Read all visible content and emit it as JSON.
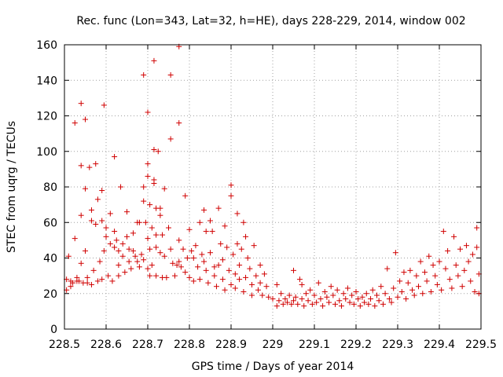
{
  "chart_data": {
    "type": "scatter",
    "title": "Rec. func (Lon=343, Lat=32, h=HE), days 228-229, 2014, window 002",
    "xlabel": "GPS time / Days of year 2014",
    "ylabel": "STEC from uqrg / TECUs",
    "xlim": [
      228.5,
      229.5
    ],
    "ylim": [
      0,
      160
    ],
    "xticks": [
      "228.5",
      "228.6",
      "228.7",
      "228.8",
      "228.9",
      "229",
      "229.1",
      "229.2",
      "229.3",
      "229.4",
      "229.5"
    ],
    "yticks": [
      "0",
      "20",
      "40",
      "60",
      "80",
      "100",
      "120",
      "140",
      "160"
    ],
    "grid": true,
    "marker": "+",
    "color": "#d00000",
    "points": [
      [
        228.505,
        28
      ],
      [
        228.505,
        22
      ],
      [
        228.51,
        41
      ],
      [
        228.515,
        27
      ],
      [
        228.515,
        24
      ],
      [
        228.52,
        26
      ],
      [
        228.525,
        116
      ],
      [
        228.525,
        51
      ],
      [
        228.53,
        29
      ],
      [
        228.53,
        27
      ],
      [
        228.535,
        27
      ],
      [
        228.54,
        127
      ],
      [
        228.54,
        92
      ],
      [
        228.54,
        64
      ],
      [
        228.54,
        37
      ],
      [
        228.545,
        26
      ],
      [
        228.55,
        118
      ],
      [
        228.55,
        79
      ],
      [
        228.55,
        44
      ],
      [
        228.555,
        29
      ],
      [
        228.555,
        26
      ],
      [
        228.56,
        91
      ],
      [
        228.565,
        67
      ],
      [
        228.565,
        61
      ],
      [
        228.565,
        25
      ],
      [
        228.57,
        33
      ],
      [
        228.575,
        93
      ],
      [
        228.575,
        59
      ],
      [
        228.58,
        73
      ],
      [
        228.58,
        27
      ],
      [
        228.585,
        38
      ],
      [
        228.59,
        78
      ],
      [
        228.59,
        61
      ],
      [
        228.59,
        28
      ],
      [
        228.595,
        126
      ],
      [
        228.595,
        44
      ],
      [
        228.6,
        57
      ],
      [
        228.6,
        52
      ],
      [
        228.605,
        30
      ],
      [
        228.61,
        65
      ],
      [
        228.61,
        48
      ],
      [
        228.615,
        27
      ],
      [
        228.62,
        97
      ],
      [
        228.62,
        55
      ],
      [
        228.62,
        46
      ],
      [
        228.625,
        50
      ],
      [
        228.63,
        44
      ],
      [
        228.63,
        36
      ],
      [
        228.63,
        30
      ],
      [
        228.635,
        80
      ],
      [
        228.64,
        48
      ],
      [
        228.64,
        41
      ],
      [
        228.645,
        32
      ],
      [
        228.65,
        66
      ],
      [
        228.65,
        52
      ],
      [
        228.655,
        45
      ],
      [
        228.655,
        38
      ],
      [
        228.66,
        34
      ],
      [
        228.665,
        54
      ],
      [
        228.665,
        44
      ],
      [
        228.67,
        41
      ],
      [
        228.675,
        60
      ],
      [
        228.675,
        38
      ],
      [
        228.68,
        60
      ],
      [
        228.68,
        35
      ],
      [
        228.685,
        42
      ],
      [
        228.69,
        143
      ],
      [
        228.69,
        80
      ],
      [
        228.69,
        72
      ],
      [
        228.69,
        39
      ],
      [
        228.695,
        60
      ],
      [
        228.7,
        122
      ],
      [
        228.7,
        93
      ],
      [
        228.7,
        86
      ],
      [
        228.7,
        51
      ],
      [
        228.7,
        34
      ],
      [
        228.705,
        70
      ],
      [
        228.705,
        45
      ],
      [
        228.705,
        30
      ],
      [
        228.71,
        57
      ],
      [
        228.71,
        36
      ],
      [
        228.715,
        151
      ],
      [
        228.715,
        101
      ],
      [
        228.715,
        84
      ],
      [
        228.715,
        82
      ],
      [
        228.72,
        68
      ],
      [
        228.72,
        53
      ],
      [
        228.72,
        46
      ],
      [
        228.72,
        30
      ],
      [
        228.725,
        100
      ],
      [
        228.73,
        68
      ],
      [
        228.73,
        64
      ],
      [
        228.73,
        43
      ],
      [
        228.735,
        53
      ],
      [
        228.735,
        29
      ],
      [
        228.74,
        79
      ],
      [
        228.74,
        41
      ],
      [
        228.745,
        29
      ],
      [
        228.75,
        57
      ],
      [
        228.755,
        143
      ],
      [
        228.755,
        107
      ],
      [
        228.755,
        45
      ],
      [
        228.76,
        37
      ],
      [
        228.765,
        30
      ],
      [
        228.77,
        36
      ],
      [
        228.775,
        159
      ],
      [
        228.775,
        116
      ],
      [
        228.775,
        50
      ],
      [
        228.775,
        38
      ],
      [
        228.78,
        35
      ],
      [
        228.785,
        45
      ],
      [
        228.79,
        75
      ],
      [
        228.79,
        32
      ],
      [
        228.795,
        40
      ],
      [
        228.8,
        56
      ],
      [
        228.8,
        29
      ],
      [
        228.805,
        44
      ],
      [
        228.81,
        40
      ],
      [
        228.81,
        27
      ],
      [
        228.815,
        47
      ],
      [
        228.82,
        35
      ],
      [
        228.825,
        60
      ],
      [
        228.825,
        28
      ],
      [
        228.83,
        42
      ],
      [
        228.835,
        67
      ],
      [
        228.835,
        38
      ],
      [
        228.84,
        55
      ],
      [
        228.84,
        33
      ],
      [
        228.845,
        26
      ],
      [
        228.85,
        61
      ],
      [
        228.85,
        43
      ],
      [
        228.855,
        55
      ],
      [
        228.86,
        35
      ],
      [
        228.86,
        30
      ],
      [
        228.865,
        24
      ],
      [
        228.87,
        68
      ],
      [
        228.87,
        36
      ],
      [
        228.875,
        48
      ],
      [
        228.88,
        39
      ],
      [
        228.88,
        28
      ],
      [
        228.885,
        58
      ],
      [
        228.885,
        22
      ],
      [
        228.89,
        46
      ],
      [
        228.895,
        33
      ],
      [
        228.9,
        81
      ],
      [
        228.9,
        75
      ],
      [
        228.9,
        25
      ],
      [
        228.905,
        42
      ],
      [
        228.91,
        31
      ],
      [
        228.91,
        23
      ],
      [
        228.915,
        65
      ],
      [
        228.915,
        48
      ],
      [
        228.92,
        36
      ],
      [
        228.92,
        28
      ],
      [
        228.925,
        45
      ],
      [
        228.93,
        60
      ],
      [
        228.93,
        21
      ],
      [
        228.935,
        52
      ],
      [
        228.935,
        29
      ],
      [
        228.94,
        40
      ],
      [
        228.945,
        34
      ],
      [
        228.95,
        25
      ],
      [
        228.95,
        19
      ],
      [
        228.955,
        47
      ],
      [
        228.96,
        30
      ],
      [
        228.965,
        22
      ],
      [
        228.97,
        36
      ],
      [
        228.97,
        26
      ],
      [
        228.975,
        19
      ],
      [
        228.98,
        31
      ],
      [
        228.985,
        24
      ],
      [
        228.99,
        18
      ],
      [
        229.0,
        17
      ],
      [
        229.01,
        25
      ],
      [
        229.01,
        13
      ],
      [
        229.015,
        16
      ],
      [
        229.02,
        20
      ],
      [
        229.025,
        14
      ],
      [
        229.03,
        17
      ],
      [
        229.035,
        15
      ],
      [
        229.04,
        19
      ],
      [
        229.045,
        14
      ],
      [
        229.05,
        33
      ],
      [
        229.05,
        16
      ],
      [
        229.055,
        18
      ],
      [
        229.06,
        14
      ],
      [
        229.065,
        28
      ],
      [
        229.07,
        25
      ],
      [
        229.07,
        17
      ],
      [
        229.075,
        13
      ],
      [
        229.08,
        20
      ],
      [
        229.085,
        16
      ],
      [
        229.09,
        22
      ],
      [
        229.095,
        14
      ],
      [
        229.1,
        19
      ],
      [
        229.105,
        15
      ],
      [
        229.11,
        26
      ],
      [
        229.115,
        17
      ],
      [
        229.12,
        13
      ],
      [
        229.125,
        21
      ],
      [
        229.13,
        18
      ],
      [
        229.135,
        15
      ],
      [
        229.14,
        24
      ],
      [
        229.145,
        19
      ],
      [
        229.15,
        14
      ],
      [
        229.155,
        22
      ],
      [
        229.16,
        16
      ],
      [
        229.165,
        13
      ],
      [
        229.17,
        20
      ],
      [
        229.175,
        17
      ],
      [
        229.18,
        23
      ],
      [
        229.185,
        15
      ],
      [
        229.19,
        19
      ],
      [
        229.195,
        14
      ],
      [
        229.2,
        21
      ],
      [
        229.205,
        17
      ],
      [
        229.21,
        13
      ],
      [
        229.215,
        18
      ],
      [
        229.22,
        15
      ],
      [
        229.225,
        20
      ],
      [
        229.23,
        14
      ],
      [
        229.235,
        17
      ],
      [
        229.24,
        22
      ],
      [
        229.245,
        13
      ],
      [
        229.25,
        19
      ],
      [
        229.255,
        16
      ],
      [
        229.26,
        24
      ],
      [
        229.265,
        14
      ],
      [
        229.27,
        20
      ],
      [
        229.275,
        34
      ],
      [
        229.28,
        17
      ],
      [
        229.285,
        15
      ],
      [
        229.29,
        23
      ],
      [
        229.295,
        43
      ],
      [
        229.3,
        18
      ],
      [
        229.305,
        27
      ],
      [
        229.31,
        21
      ],
      [
        229.315,
        32
      ],
      [
        229.32,
        17
      ],
      [
        229.325,
        26
      ],
      [
        229.33,
        33
      ],
      [
        229.335,
        22
      ],
      [
        229.34,
        19
      ],
      [
        229.345,
        30
      ],
      [
        229.35,
        24
      ],
      [
        229.355,
        38
      ],
      [
        229.36,
        20
      ],
      [
        229.365,
        32
      ],
      [
        229.37,
        27
      ],
      [
        229.375,
        41
      ],
      [
        229.38,
        21
      ],
      [
        229.385,
        36
      ],
      [
        229.39,
        30
      ],
      [
        229.395,
        25
      ],
      [
        229.4,
        38
      ],
      [
        229.405,
        22
      ],
      [
        229.41,
        55
      ],
      [
        229.415,
        34
      ],
      [
        229.42,
        44
      ],
      [
        229.425,
        28
      ],
      [
        229.43,
        23
      ],
      [
        229.435,
        52
      ],
      [
        229.44,
        36
      ],
      [
        229.445,
        30
      ],
      [
        229.45,
        45
      ],
      [
        229.455,
        24
      ],
      [
        229.46,
        33
      ],
      [
        229.465,
        47
      ],
      [
        229.47,
        38
      ],
      [
        229.475,
        27
      ],
      [
        229.48,
        42
      ],
      [
        229.485,
        21
      ],
      [
        229.49,
        46
      ],
      [
        229.49,
        57
      ],
      [
        229.495,
        31
      ],
      [
        229.495,
        20
      ]
    ]
  }
}
